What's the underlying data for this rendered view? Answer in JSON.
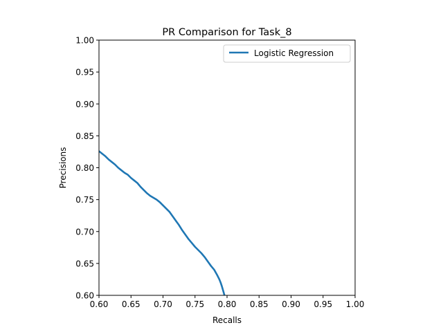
{
  "chart_data": {
    "type": "line",
    "title": "PR Comparison for Task_8",
    "xlabel": "Recalls",
    "ylabel": "Precisions",
    "xlim": [
      0.6,
      1.0
    ],
    "ylim": [
      0.6,
      1.0
    ],
    "xticks": [
      "0.60",
      "0.65",
      "0.70",
      "0.75",
      "0.80",
      "0.85",
      "0.90",
      "0.95",
      "1.00"
    ],
    "yticks": [
      "0.60",
      "0.65",
      "0.70",
      "0.75",
      "0.80",
      "0.85",
      "0.90",
      "0.95",
      "1.00"
    ],
    "grid": false,
    "legend_position": "upper right",
    "series": [
      {
        "name": "Logistic Regression",
        "color": "#1f77b4",
        "x": [
          0.6,
          0.605,
          0.61,
          0.615,
          0.62,
          0.625,
          0.63,
          0.635,
          0.64,
          0.645,
          0.65,
          0.655,
          0.66,
          0.665,
          0.67,
          0.675,
          0.68,
          0.685,
          0.69,
          0.695,
          0.7,
          0.705,
          0.71,
          0.715,
          0.72,
          0.725,
          0.73,
          0.735,
          0.74,
          0.745,
          0.75,
          0.755,
          0.76,
          0.765,
          0.77,
          0.775,
          0.78,
          0.785,
          0.788,
          0.79,
          0.792,
          0.794,
          0.796
        ],
        "y": [
          0.826,
          0.822,
          0.818,
          0.813,
          0.809,
          0.805,
          0.8,
          0.796,
          0.792,
          0.789,
          0.784,
          0.78,
          0.776,
          0.77,
          0.765,
          0.76,
          0.756,
          0.753,
          0.75,
          0.746,
          0.741,
          0.736,
          0.731,
          0.724,
          0.717,
          0.71,
          0.702,
          0.695,
          0.688,
          0.682,
          0.676,
          0.671,
          0.666,
          0.66,
          0.653,
          0.646,
          0.64,
          0.631,
          0.625,
          0.62,
          0.614,
          0.607,
          0.6
        ]
      }
    ]
  }
}
